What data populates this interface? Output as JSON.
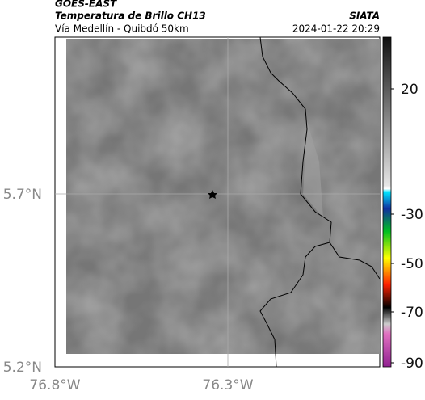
{
  "header": {
    "title": "GOES-EAST",
    "subtitle": "Temperatura de Brillo CH13",
    "region": "Vía Medellín - Quibdó 50km",
    "source": "SIATA",
    "timestamp": "2024-01-22 20:29"
  },
  "map": {
    "lat_labels": [
      "5.7°N",
      "5.2°N"
    ],
    "lon_labels": [
      "76.8°W",
      "76.3°W"
    ]
  },
  "colorbar": {
    "labels": [
      "20",
      "-30",
      "-50",
      "-70",
      "-90"
    ]
  }
}
